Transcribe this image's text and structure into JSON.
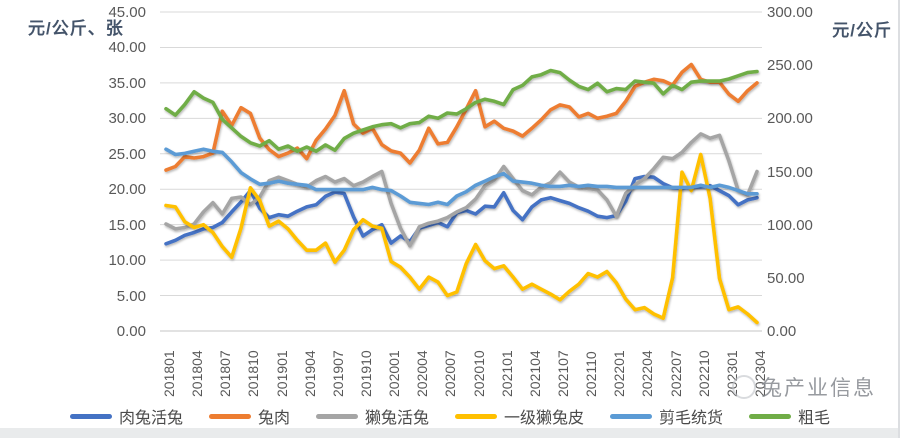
{
  "page": {
    "background": "#ffffff",
    "footer_bar_color": "#e9ebec",
    "grid_color": "#d9d9d9",
    "axis_line_color": "#c6c6c6",
    "tick_text_color": "#595959"
  },
  "watermark": {
    "text": "兔产业信息"
  },
  "chart_data": {
    "type": "line",
    "grid": true,
    "legend_position": "bottom",
    "x": [
      "201801",
      "201802",
      "201803",
      "201804",
      "201805",
      "201806",
      "201807",
      "201808",
      "201809",
      "201810",
      "201811",
      "201812",
      "201901",
      "201902",
      "201903",
      "201904",
      "201905",
      "201906",
      "201907",
      "201908",
      "201909",
      "201910",
      "201911",
      "201912",
      "202001",
      "202002",
      "202003",
      "202004",
      "202005",
      "202006",
      "202007",
      "202008",
      "202009",
      "202010",
      "202011",
      "202012",
      "202101",
      "202102",
      "202103",
      "202104",
      "202105",
      "202106",
      "202107",
      "202108",
      "202109",
      "202110",
      "202111",
      "202112",
      "202201",
      "202202",
      "202203",
      "202204",
      "202205",
      "202206",
      "202207",
      "202208",
      "202209",
      "202210",
      "202211",
      "202212",
      "202301",
      "202302",
      "202303",
      "202304"
    ],
    "x_tick_labels": [
      "201801",
      "201804",
      "201807",
      "201810",
      "201901",
      "201904",
      "201907",
      "201910",
      "202001",
      "202004",
      "202007",
      "202010",
      "202101",
      "202104",
      "202107",
      "202110",
      "202201",
      "202204",
      "202207",
      "202210",
      "202301",
      "202304"
    ],
    "left_axis": {
      "title": "元/公斤、张",
      "min": 0,
      "max": 45,
      "step": 5,
      "tick_labels": [
        "45.00",
        "40.00",
        "35.00",
        "30.00",
        "25.00",
        "20.00",
        "15.00",
        "10.00",
        "5.00",
        "0.00"
      ]
    },
    "right_axis": {
      "title": "元/公斤",
      "min": 0,
      "max": 300,
      "step": 50,
      "tick_labels": [
        "300.00",
        "250.00",
        "200.00",
        "150.00",
        "100.00",
        "50.00",
        "0.00"
      ]
    },
    "series": [
      {
        "key": "live-meat-rabbit",
        "name": "肉兔活兔",
        "color": "#4472C4",
        "axis": "left",
        "values": [
          12.3,
          12.8,
          13.5,
          13.9,
          14.4,
          14.6,
          15.3,
          16.8,
          18.2,
          19.8,
          17.3,
          16.0,
          16.4,
          16.2,
          16.9,
          17.5,
          17.8,
          19.0,
          19.6,
          19.4,
          16.1,
          13.4,
          14.3,
          15.0,
          12.4,
          13.4,
          12.6,
          14.5,
          14.9,
          15.3,
          14.7,
          16.7,
          17.0,
          16.5,
          17.6,
          17.5,
          19.5,
          17.0,
          15.7,
          17.5,
          18.5,
          18.8,
          18.4,
          18.0,
          17.4,
          16.9,
          16.2,
          16.0,
          16.3,
          18.3,
          21.5,
          21.8,
          21.7,
          20.8,
          20.2,
          20.1,
          20.3,
          20.3,
          20.5,
          19.8,
          19.1,
          17.8,
          18.5,
          18.8
        ]
      },
      {
        "key": "rabbit-meat",
        "name": "兔肉",
        "color": "#ED7D31",
        "axis": "left",
        "values": [
          22.7,
          23.2,
          24.6,
          24.4,
          24.6,
          25.1,
          31.0,
          29.0,
          31.5,
          30.7,
          27.2,
          25.6,
          24.6,
          25.1,
          25.8,
          24.3,
          26.9,
          28.5,
          30.4,
          33.9,
          29.2,
          27.9,
          28.6,
          26.3,
          25.4,
          25.1,
          23.7,
          25.5,
          28.6,
          26.4,
          26.6,
          28.8,
          31.3,
          33.9,
          28.8,
          29.6,
          28.6,
          28.2,
          27.5,
          28.6,
          29.8,
          31.2,
          31.9,
          31.6,
          30.2,
          30.7,
          30.0,
          30.3,
          30.7,
          32.4,
          34.5,
          35.1,
          35.5,
          35.3,
          34.7,
          36.5,
          37.6,
          35.5,
          35.1,
          35.1,
          33.4,
          32.4,
          33.9,
          35.0
        ]
      },
      {
        "key": "live-rex-rabbit",
        "name": "獭兔活兔",
        "color": "#A5A5A5",
        "axis": "left",
        "values": [
          15.1,
          14.4,
          14.6,
          15.1,
          16.8,
          18.1,
          16.5,
          18.7,
          18.9,
          17.8,
          18.9,
          21.2,
          21.7,
          21.2,
          20.7,
          20.3,
          21.2,
          21.8,
          21.0,
          21.5,
          20.5,
          21.0,
          21.8,
          22.5,
          18.0,
          14.5,
          12.0,
          14.7,
          15.2,
          15.5,
          16.0,
          16.8,
          17.4,
          18.6,
          20.5,
          21.3,
          23.2,
          21.5,
          19.8,
          19.2,
          20.3,
          20.9,
          22.4,
          21.0,
          20.3,
          20.1,
          19.9,
          18.5,
          16.2,
          19.4,
          20.6,
          21.5,
          22.9,
          24.5,
          24.3,
          25.2,
          26.6,
          27.8,
          27.2,
          27.6,
          24.0,
          19.8,
          19.2,
          22.5
        ]
      },
      {
        "key": "grade1-rex-pelt",
        "name": "一级獭兔皮",
        "color": "#FFC000",
        "axis": "left",
        "values": [
          17.7,
          17.5,
          15.4,
          14.6,
          15.0,
          13.9,
          11.9,
          10.4,
          14.5,
          20.2,
          18.4,
          14.8,
          15.5,
          14.4,
          12.8,
          11.4,
          11.4,
          12.4,
          9.7,
          11.4,
          14.3,
          15.7,
          14.8,
          14.5,
          9.8,
          9.0,
          7.6,
          5.9,
          7.6,
          6.9,
          5.0,
          5.5,
          9.5,
          12.2,
          9.9,
          8.8,
          9.2,
          7.6,
          5.9,
          6.6,
          5.9,
          5.2,
          4.4,
          5.6,
          6.6,
          8.1,
          7.6,
          8.4,
          6.8,
          4.5,
          3.0,
          3.3,
          2.4,
          1.8,
          7.5,
          22.4,
          19.8,
          24.9,
          18.7,
          7.4,
          3.0,
          3.4,
          2.4,
          1.2
        ]
      },
      {
        "key": "sheared-wool",
        "name": "剪毛统货",
        "color": "#5B9BD5",
        "axis": "right",
        "values": [
          171,
          166,
          167,
          169,
          171,
          169,
          168,
          159,
          149,
          143,
          138,
          139,
          141,
          139,
          138,
          137,
          133,
          133,
          133,
          133,
          133,
          133,
          135,
          133,
          132,
          127,
          121,
          120,
          119,
          121,
          119,
          127,
          131,
          137,
          141,
          145,
          148,
          141,
          140,
          139,
          137,
          136,
          136,
          137,
          136,
          137,
          136,
          136,
          135,
          135,
          135,
          135,
          135,
          135,
          135,
          135,
          135,
          137,
          135,
          137,
          135,
          132,
          129,
          129
        ]
      },
      {
        "key": "coarse-wool",
        "name": "粗毛",
        "color": "#70AD47",
        "axis": "right",
        "values": [
          209,
          203,
          213,
          225,
          219,
          215,
          199,
          191,
          183,
          177,
          174,
          179,
          171,
          174,
          169,
          173,
          169,
          175,
          170,
          181,
          186,
          189,
          192,
          194,
          195,
          191,
          195,
          196,
          202,
          200,
          205,
          204,
          209,
          215,
          218,
          216,
          213,
          227,
          231,
          239,
          241,
          245,
          243,
          236,
          230,
          227,
          233,
          225,
          228,
          227,
          235,
          234,
          233,
          223,
          231,
          227,
          234,
          235,
          235,
          235,
          237,
          240,
          243,
          244
        ]
      }
    ]
  }
}
